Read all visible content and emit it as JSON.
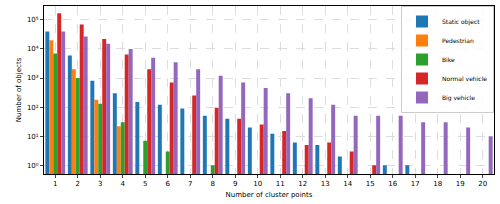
{
  "chart_data": {
    "type": "bar",
    "x_label": "Number of cluster points",
    "y_label": "Number of objects",
    "categories": [
      "1",
      "2",
      "3",
      "4",
      "5",
      "6",
      "7",
      "8",
      "9",
      "10",
      "11",
      "12",
      "13",
      "14",
      "15",
      "16",
      "17",
      "18",
      "19",
      "20"
    ],
    "series": [
      {
        "name": "Static object",
        "color": "#1f77b4",
        "values": [
          40000,
          6000,
          800,
          300,
          150,
          120,
          90,
          50,
          40,
          20,
          12,
          6,
          5,
          2,
          null,
          1,
          1,
          null,
          null,
          null
        ]
      },
      {
        "name": "Pedestrian",
        "color": "#ff7f0e",
        "values": [
          20000,
          2000,
          180,
          22,
          null,
          null,
          null,
          null,
          null,
          null,
          null,
          null,
          null,
          null,
          null,
          null,
          null,
          null,
          null,
          null
        ]
      },
      {
        "name": "Bike",
        "color": "#2ca02c",
        "values": [
          7000,
          1000,
          130,
          30,
          7,
          3,
          null,
          1,
          null,
          null,
          null,
          null,
          null,
          null,
          null,
          null,
          null,
          null,
          null,
          null
        ]
      },
      {
        "name": "Normal vehicle",
        "color": "#d62728",
        "values": [
          170000,
          70000,
          22000,
          6500,
          2000,
          700,
          250,
          95,
          40,
          25,
          15,
          5,
          6,
          3,
          1,
          null,
          null,
          null,
          null,
          null
        ]
      },
      {
        "name": "Big vehicle",
        "color": "#9467bd",
        "values": [
          40000,
          27000,
          15000,
          10000,
          5000,
          3500,
          2000,
          1200,
          700,
          450,
          300,
          200,
          120,
          50,
          50,
          50,
          30,
          30,
          20,
          10
        ]
      }
    ],
    "log": "y",
    "ylim": [
      0.5,
      300000
    ],
    "yticks": [
      {
        "value": 1,
        "label": "10⁰"
      },
      {
        "value": 10,
        "label": "10¹"
      },
      {
        "value": 100,
        "label": "10²"
      },
      {
        "value": 1000,
        "label": "10³"
      },
      {
        "value": 10000,
        "label": "10⁴"
      },
      {
        "value": 100000,
        "label": "10⁵"
      }
    ],
    "grid": true,
    "legend": "top-right"
  }
}
